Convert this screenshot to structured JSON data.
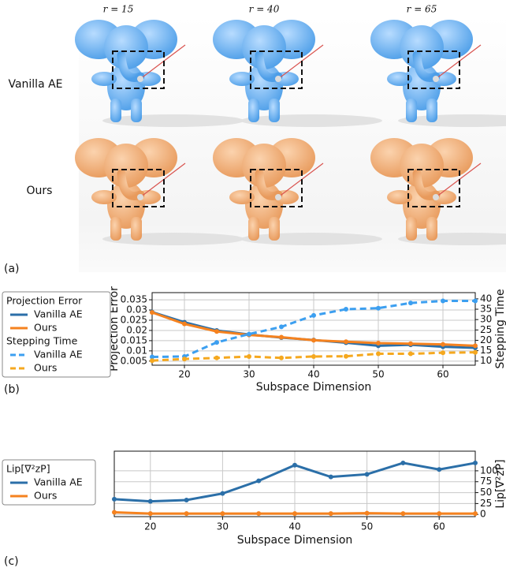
{
  "figure": {
    "panel_label": "(a)",
    "column_labels": [
      "r = 15",
      "r = 40",
      "r = 65"
    ],
    "row_labels": [
      "Vanilla AE",
      "Ours"
    ]
  },
  "chart_data": [
    {
      "type": "line",
      "panel_label": "(b)",
      "xlabel": "Subspace Dimension",
      "ylabel": "Projection Error",
      "y2label": "Stepping Time",
      "x": [
        15,
        20,
        25,
        30,
        35,
        40,
        45,
        50,
        55,
        60,
        65
      ],
      "xlim": [
        15,
        65
      ],
      "xticks": [
        20,
        30,
        40,
        50,
        60
      ],
      "ylim": [
        0.003,
        0.0385
      ],
      "yticks": [
        0.005,
        0.01,
        0.015,
        0.02,
        0.025,
        0.03,
        0.035
      ],
      "y2lim": [
        8,
        43
      ],
      "y2ticks": [
        10,
        15,
        20,
        25,
        30,
        35,
        40
      ],
      "grid": true,
      "series": [
        {
          "name": "Vanilla AE",
          "color": "#2b6fa8",
          "dash": false,
          "values": [
            0.029,
            0.024,
            0.02,
            0.018,
            0.0165,
            0.0153,
            0.014,
            0.0125,
            0.013,
            0.012,
            0.0115
          ]
        },
        {
          "name": "Ours",
          "color": "#f5821f",
          "dash": false,
          "values": [
            0.0288,
            0.0232,
            0.0195,
            0.0178,
            0.0167,
            0.0152,
            0.0145,
            0.0138,
            0.0135,
            0.0132,
            0.0125
          ]
        },
        {
          "name": "Vanilla AE",
          "color": "#3c9ff0",
          "dash": true,
          "axis": "y2",
          "values": [
            12,
            12.2,
            19,
            23,
            26.5,
            32,
            35,
            35.5,
            38,
            39,
            39
          ]
        },
        {
          "name": "Ours",
          "color": "#f5a81f",
          "dash": true,
          "axis": "y2",
          "values": [
            10.2,
            11,
            11.5,
            12.2,
            11.5,
            12.2,
            12.3,
            13.5,
            13.5,
            14,
            14.2
          ]
        }
      ]
    },
    {
      "type": "line",
      "panel_label": "(c)",
      "xlabel": "Subspace Dimension",
      "y2label": "Lip[∇²zP]",
      "x": [
        15,
        20,
        25,
        30,
        35,
        40,
        45,
        50,
        55,
        60,
        65
      ],
      "xlim": [
        15,
        65
      ],
      "xticks": [
        20,
        30,
        40,
        50,
        60
      ],
      "y2lim": [
        -5,
        145
      ],
      "y2ticks": [
        0,
        25,
        50,
        75,
        100
      ],
      "grid": true,
      "series": [
        {
          "name": "Vanilla AE",
          "color": "#2b6fa8",
          "dash": false,
          "axis": "y2",
          "values": [
            35,
            30,
            33,
            48,
            77,
            113,
            86,
            92,
            118,
            103,
            118
          ]
        },
        {
          "name": "Ours",
          "color": "#f5821f",
          "dash": false,
          "axis": "y2",
          "values": [
            5,
            2,
            2,
            2,
            2,
            2,
            2,
            3,
            2,
            2,
            2
          ]
        }
      ]
    }
  ]
}
